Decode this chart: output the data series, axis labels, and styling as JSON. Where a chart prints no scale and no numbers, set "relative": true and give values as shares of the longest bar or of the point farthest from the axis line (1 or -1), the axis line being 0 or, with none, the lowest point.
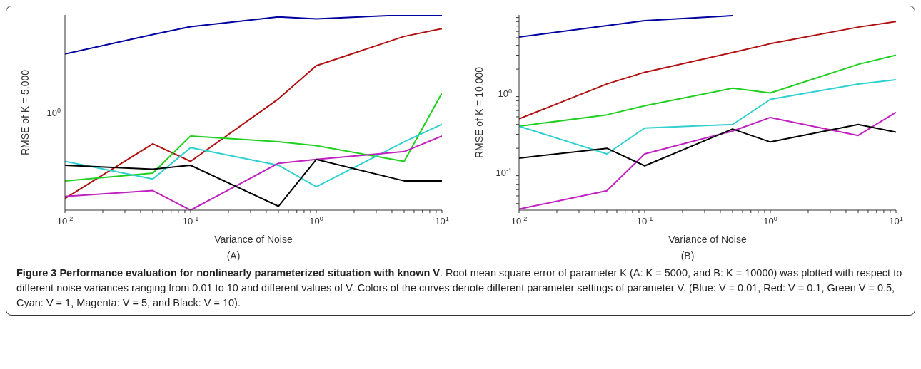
{
  "chart_data": [
    {
      "type": "line",
      "xlabel": "Variance of Noise",
      "ylabel": "RMSE of K = 5,000",
      "log": "x",
      "relative": true,
      "annotations": [
        "(A)",
        "10$^{0}$"
      ],
      "x": [
        0.01,
        0.05,
        0.1,
        0.5,
        1,
        5,
        10
      ],
      "xlim": [
        0.01,
        10
      ],
      "xticks": [
        {
          "value": 0.01,
          "label": "10$^{-2}$"
        },
        {
          "value": 0.02,
          "label": null
        },
        {
          "value": 0.03,
          "label": null
        },
        {
          "value": 0.04,
          "label": null
        },
        {
          "value": 0.05,
          "label": null
        },
        {
          "value": 0.06,
          "label": null
        },
        {
          "value": 0.07,
          "label": null
        },
        {
          "value": 0.08,
          "label": null
        },
        {
          "value": 0.09,
          "label": null
        },
        {
          "value": 0.1,
          "label": "10$^{-1}$"
        },
        {
          "value": 0.2,
          "label": null
        },
        {
          "value": 0.3,
          "label": null
        },
        {
          "value": 0.4,
          "label": null
        },
        {
          "value": 0.5,
          "label": null
        },
        {
          "value": 0.6,
          "label": null
        },
        {
          "value": 0.7,
          "label": null
        },
        {
          "value": 0.8,
          "label": null
        },
        {
          "value": 0.9,
          "label": null
        },
        {
          "value": 1,
          "label": "10$^{0}$"
        },
        {
          "value": 2,
          "label": null
        },
        {
          "value": 3,
          "label": null
        },
        {
          "value": 4,
          "label": null
        },
        {
          "value": 5,
          "label": null
        },
        {
          "value": 6,
          "label": null
        },
        {
          "value": 7,
          "label": null
        },
        {
          "value": 8,
          "label": null
        },
        {
          "value": 9,
          "label": null
        },
        {
          "value": 10,
          "label": "10$^{1}$"
        }
      ],
      "series": [
        {
          "color": "#0000a0",
          "values": [
            0.8,
            0.9,
            0.94,
            0.99,
            0.98,
            1,
            1
          ]
        },
        {
          "color": "#b01010",
          "values": [
            0.06,
            0.34,
            0.25,
            0.57,
            0.74,
            0.89,
            0.93
          ]
        },
        {
          "color": "#20d020",
          "values": [
            0.15,
            0.19,
            0.38,
            0.35,
            0.33,
            0.25,
            0.6
          ]
        },
        {
          "color": "#30d0d0",
          "values": [
            0.25,
            0.16,
            0.32,
            0.23,
            0.12,
            0.35,
            0.44
          ]
        },
        {
          "color": "#c020c0",
          "values": [
            0.07,
            0.1,
            0,
            0.24,
            0.26,
            0.3,
            0.38
          ]
        },
        {
          "color": "#000000",
          "values": [
            0.23,
            0.21,
            0.23,
            0.02,
            0.26,
            0.15,
            0.15
          ]
        }
      ]
    },
    {
      "type": "line",
      "xlabel": "Variance of Noise",
      "ylabel": "RMSE of K = 10,000",
      "log": "xy",
      "annotations": [
        "(B)",
        "Figure 3 Performance evaluation for nonlinearly parameterized situation with known V",
        ". Root mean square error of parameter K (A: K = 5000, and B: K = 10000) was plotted with respect to different noise variances ranging from 0.01 to 10 and different values of V. Colors of the curves denote different parameter settings of parameter V. (Blue: V = 0.01, Red: V = 0.1, Green V = 0.5, Cyan: V = 1, Magenta: V = 5, and Black: V = 10)."
      ],
      "x": [
        0.01,
        0.05,
        0.1,
        0.5,
        1,
        5,
        10
      ],
      "xlim": [
        0.01,
        10
      ],
      "ylim": [
        0.033,
        9.7
      ],
      "xticks": [
        {
          "value": 0.01,
          "label": "10$^{-2}$"
        },
        {
          "value": 0.02,
          "label": null
        },
        {
          "value": 0.03,
          "label": null
        },
        {
          "value": 0.04,
          "label": null
        },
        {
          "value": 0.05,
          "label": null
        },
        {
          "value": 0.06,
          "label": null
        },
        {
          "value": 0.07,
          "label": null
        },
        {
          "value": 0.08,
          "label": null
        },
        {
          "value": 0.09,
          "label": null
        },
        {
          "value": 0.1,
          "label": "10$^{-1}$"
        },
        {
          "value": 0.2,
          "label": null
        },
        {
          "value": 0.3,
          "label": null
        },
        {
          "value": 0.4,
          "label": null
        },
        {
          "value": 0.5,
          "label": null
        },
        {
          "value": 0.6,
          "label": null
        },
        {
          "value": 0.7,
          "label": null
        },
        {
          "value": 0.8,
          "label": null
        },
        {
          "value": 0.9,
          "label": null
        },
        {
          "value": 1,
          "label": "10$^{0}$"
        },
        {
          "value": 2,
          "label": null
        },
        {
          "value": 3,
          "label": null
        },
        {
          "value": 4,
          "label": null
        },
        {
          "value": 5,
          "label": null
        },
        {
          "value": 6,
          "label": null
        },
        {
          "value": 7,
          "label": null
        },
        {
          "value": 8,
          "label": null
        },
        {
          "value": 9,
          "label": null
        },
        {
          "value": 10,
          "label": "10$^{1}$"
        }
      ],
      "yticks": [
        {
          "value": 0.04,
          "label": null
        },
        {
          "value": 0.05,
          "label": null
        },
        {
          "value": 0.06,
          "label": null
        },
        {
          "value": 0.07,
          "label": null
        },
        {
          "value": 0.08,
          "label": null
        },
        {
          "value": 0.09,
          "label": null
        },
        {
          "value": 0.1,
          "label": "10$^{-1}$"
        },
        {
          "value": 0.2,
          "label": null
        },
        {
          "value": 0.3,
          "label": null
        },
        {
          "value": 0.4,
          "label": null
        },
        {
          "value": 0.5,
          "label": null
        },
        {
          "value": 0.6,
          "label": null
        },
        {
          "value": 0.7,
          "label": null
        },
        {
          "value": 0.8,
          "label": null
        },
        {
          "value": 0.9,
          "label": null
        },
        {
          "value": 1,
          "label": "10$^{0}$"
        },
        {
          "value": 2,
          "label": null
        },
        {
          "value": 3,
          "label": null
        },
        {
          "value": 4,
          "label": null
        },
        {
          "value": 5,
          "label": null
        },
        {
          "value": 6,
          "label": null
        },
        {
          "value": 7,
          "label": null
        },
        {
          "value": 8,
          "label": null
        },
        {
          "value": 9,
          "label": null
        }
      ],
      "series": [
        {
          "color": "#0000a0",
          "values": [
            5.1,
            7.1,
            8.2,
            9.5,
            null,
            null,
            null
          ]
        },
        {
          "color": "#b01010",
          "values": [
            0.47,
            1.3,
            1.83,
            3.25,
            4.2,
            6.8,
            8.0
          ]
        },
        {
          "color": "#20d020",
          "values": [
            0.38,
            0.53,
            0.69,
            1.15,
            1.0,
            2.3,
            3.0
          ]
        },
        {
          "color": "#30d0d0",
          "values": [
            0.38,
            0.17,
            0.36,
            0.4,
            0.83,
            1.3,
            1.47
          ]
        },
        {
          "color": "#c020c0",
          "values": [
            0.034,
            0.058,
            0.17,
            0.33,
            0.49,
            0.29,
            0.57
          ]
        },
        {
          "color": "#000000",
          "values": [
            0.15,
            0.2,
            0.12,
            0.35,
            0.24,
            0.4,
            0.32
          ]
        }
      ]
    }
  ]
}
